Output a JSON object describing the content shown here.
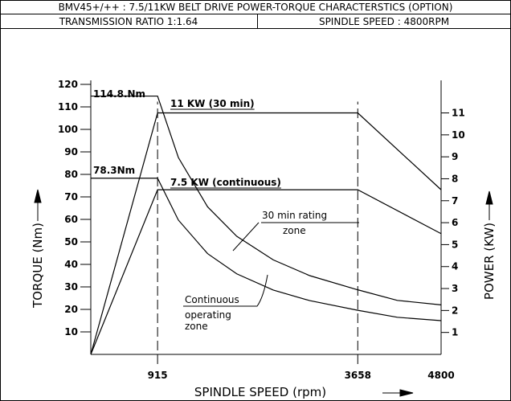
{
  "chart_data": {
    "type": "line",
    "title": "BMV45+/++ : 7.5/11KW BELT DRIVE POWER-TORQUE CHARACTERSTICS (OPTION)",
    "subtitle": [
      "TRANSMISSION RATIO 1:1.64",
      "SPINDLE SPEED : 4800RPM"
    ],
    "xlabel": "SPINDLE SPEED (rpm)",
    "ylabel": "TORQUE (Nm)",
    "y2label": "POWER (KW)",
    "xlim": [
      0,
      4800
    ],
    "xticks": [
      915,
      3658,
      4800
    ],
    "ylim": [
      0,
      120
    ],
    "yticks": [
      10,
      20,
      30,
      40,
      50,
      60,
      70,
      80,
      90,
      100,
      110,
      120
    ],
    "y2lim": [
      0,
      12.3
    ],
    "y2ticks": [
      1,
      2,
      3,
      4,
      5,
      6,
      7,
      8,
      9,
      10,
      11
    ],
    "color": "#000000",
    "series": [
      {
        "x": [
          0,
          915,
          1200,
          1600,
          2000,
          2500,
          3000,
          3658,
          4200,
          4800
        ],
        "values": [
          114.8,
          114.8,
          87.5,
          65.6,
          52.5,
          42,
          35,
          28.7,
          24,
          22
        ]
      },
      {
        "x": [
          0,
          915,
          1200,
          1600,
          2000,
          2500,
          3000,
          3658,
          4200,
          4800
        ],
        "values": [
          78.3,
          78.3,
          59.7,
          44.8,
          35.8,
          28.6,
          23.9,
          19.6,
          16.5,
          15
        ]
      },
      {
        "x": [
          0,
          915,
          3658,
          4800
        ],
        "values": [
          0,
          11,
          11,
          7.5
        ],
        "axis": "y2"
      },
      {
        "x": [
          0,
          915,
          3658,
          4800
        ],
        "values": [
          0,
          7.5,
          7.5,
          5.5
        ],
        "axis": "y2"
      }
    ],
    "annotations": [
      "114.8.Nm",
      "78.3Nm",
      "11 KW (30 min)",
      "7.5 KW (continuous)",
      "30 min rating",
      "zone",
      "Continuous",
      "operating",
      "zone"
    ]
  }
}
